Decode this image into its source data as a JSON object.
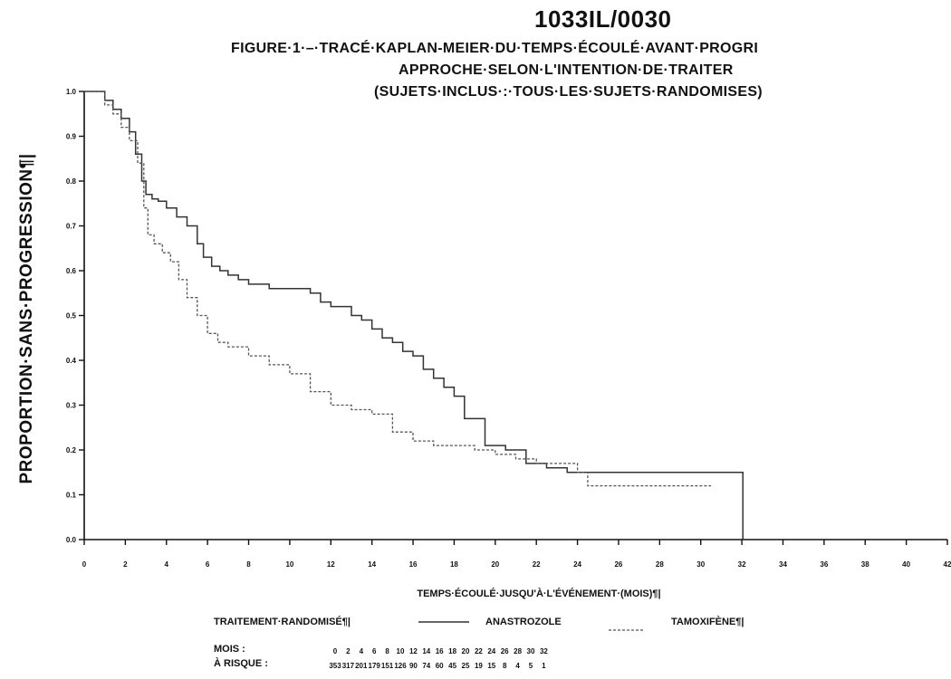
{
  "header": {
    "title": "1033IL/0030",
    "subtitle_1": "FIGURE·1·–·TRACÉ·KAPLAN-MEIER·DU·TEMPS·ÉCOULÉ·AVANT·PROGRI",
    "subtitle_2": "APPROCHE·SELON·L'INTENTION·DE·TRAITER",
    "subtitle_3": "(SUJETS·INCLUS·:·TOUS·LES·SUJETS·RANDOMISES)"
  },
  "legend": {
    "label": "TRAITEMENT·RANDOMISÉ¶|",
    "anastrozole": "ANASTROZOLE",
    "tamoxifene": "TAMOXIFÈNE¶|"
  },
  "risk_table": {
    "label_months": "MOIS :",
    "label_at_risk": "À RISQUE :",
    "months": [
      "0",
      "2",
      "4",
      "6",
      "8",
      "10",
      "12",
      "14",
      "16",
      "18",
      "20",
      "22",
      "24",
      "26",
      "28",
      "30",
      "32"
    ],
    "at_risk": [
      "353",
      "317",
      "201",
      "179",
      "151",
      "126",
      "90",
      "74",
      "60",
      "45",
      "25",
      "19",
      "15",
      "8",
      "4",
      "5",
      "1"
    ]
  },
  "chart_data": {
    "type": "line",
    "xlabel": "TEMPS·ÉCOULÉ·JUSQU'À·L'ÉVÉNEMENT·(MOIS)¶|",
    "ylabel": "PROPORTION·SANS·PROGRESSION¶|",
    "xlim": [
      0,
      42
    ],
    "ylim": [
      0,
      1
    ],
    "x_ticks": [
      0,
      2,
      4,
      6,
      8,
      10,
      12,
      14,
      16,
      18,
      20,
      22,
      24,
      26,
      28,
      30,
      32,
      34,
      36,
      38,
      40,
      42
    ],
    "y_ticks": [
      "0.0",
      "0.1",
      "0.2",
      "0.3",
      "0.4",
      "0.5",
      "0.6",
      "0.7",
      "0.8",
      "0.9",
      "1.0"
    ],
    "grid": false,
    "legend_position": "bottom",
    "series": [
      {
        "name": "ANASTROZOLE",
        "style": "solid",
        "color": "#333333",
        "x": [
          0,
          0.6,
          1.0,
          1.4,
          1.8,
          2.2,
          2.5,
          2.8,
          3.0,
          3.3,
          3.6,
          4.0,
          4.5,
          5.0,
          5.5,
          5.8,
          6.2,
          6.6,
          7.0,
          7.5,
          8.0,
          9.0,
          9.5,
          10.0,
          11.0,
          11.5,
          12.0,
          13.0,
          13.5,
          14.0,
          14.5,
          15.0,
          15.5,
          16.0,
          16.5,
          17.0,
          17.5,
          18.0,
          18.5,
          19.5,
          20.5,
          21.5,
          22.5,
          23.5,
          24.5,
          26.0,
          28.0,
          30.0,
          31.0,
          32.0,
          32.05
        ],
        "y": [
          1.0,
          1.0,
          0.98,
          0.96,
          0.94,
          0.91,
          0.86,
          0.8,
          0.77,
          0.76,
          0.755,
          0.74,
          0.72,
          0.7,
          0.66,
          0.63,
          0.61,
          0.6,
          0.59,
          0.58,
          0.57,
          0.56,
          0.56,
          0.56,
          0.55,
          0.53,
          0.52,
          0.5,
          0.49,
          0.47,
          0.45,
          0.44,
          0.42,
          0.41,
          0.38,
          0.36,
          0.34,
          0.32,
          0.27,
          0.21,
          0.2,
          0.17,
          0.16,
          0.15,
          0.15,
          0.15,
          0.15,
          0.15,
          0.15,
          0.15,
          0.0
        ]
      },
      {
        "name": "TAMOXIFÈNE",
        "style": "dashed",
        "color": "#555555",
        "x": [
          0,
          0.6,
          1.0,
          1.4,
          1.8,
          2.2,
          2.6,
          2.9,
          3.1,
          3.4,
          3.8,
          4.2,
          4.6,
          5.0,
          5.5,
          6.0,
          6.5,
          7.0,
          8.0,
          9.0,
          10.0,
          11.0,
          12.0,
          13.0,
          14.0,
          15.0,
          16.0,
          17.0,
          18.0,
          19.0,
          20.0,
          21.0,
          22.0,
          23.0,
          24.0,
          24.5,
          26.0,
          28.0,
          30.0,
          30.5
        ],
        "y": [
          1.0,
          1.0,
          0.97,
          0.95,
          0.92,
          0.89,
          0.84,
          0.74,
          0.68,
          0.66,
          0.64,
          0.62,
          0.58,
          0.54,
          0.5,
          0.46,
          0.44,
          0.43,
          0.41,
          0.39,
          0.37,
          0.33,
          0.3,
          0.29,
          0.28,
          0.24,
          0.22,
          0.21,
          0.21,
          0.2,
          0.19,
          0.18,
          0.17,
          0.17,
          0.15,
          0.12,
          0.12,
          0.12,
          0.12,
          0.12
        ]
      }
    ]
  }
}
